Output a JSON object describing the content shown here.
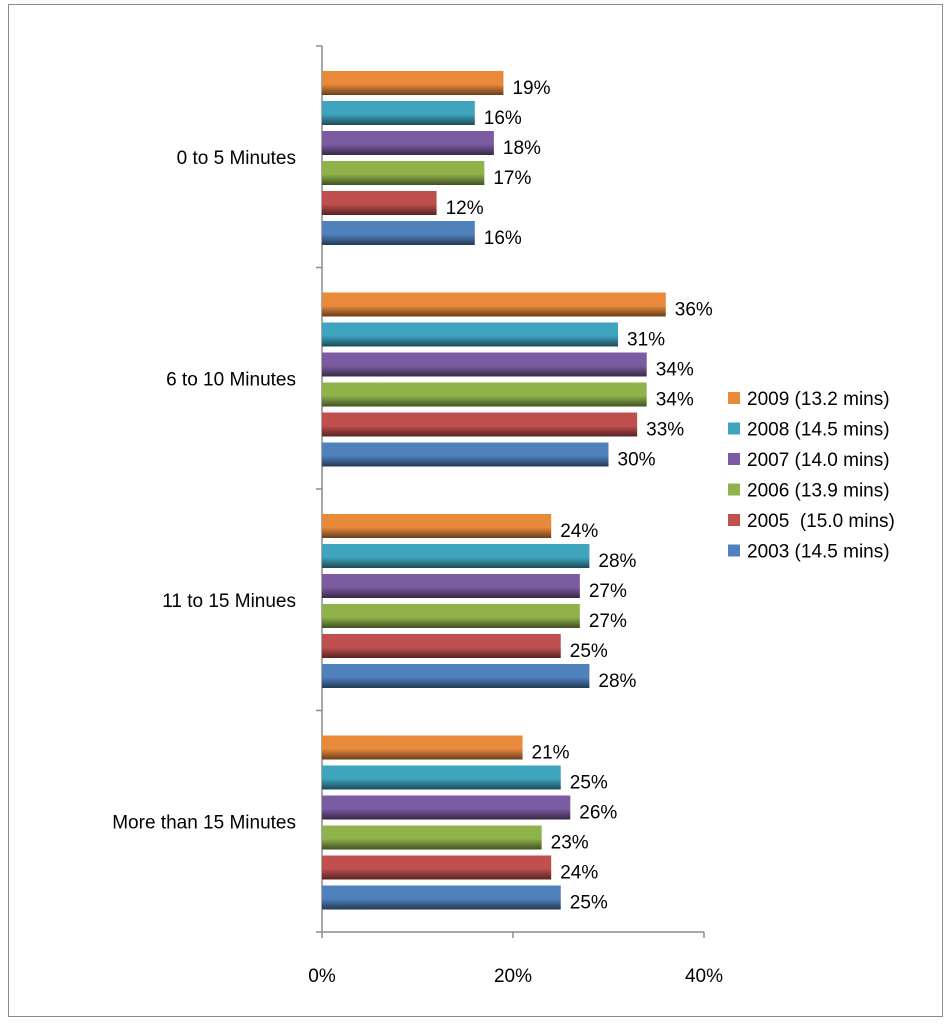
{
  "chart_data": {
    "type": "bar",
    "orientation": "horizontal",
    "categories": [
      "0 to 5 Minutes",
      "6 to 10 Minutes",
      "11 to 15 Minues",
      "More than 15 Minutes"
    ],
    "series": [
      {
        "name": "2009 (13.2 mins)",
        "color": "#E98A3B",
        "values": [
          19,
          36,
          24,
          21
        ],
        "labels": [
          "19%",
          "36%",
          "24%",
          "21%"
        ]
      },
      {
        "name": "2008 (14.5 mins)",
        "color": "#3FA4BE",
        "values": [
          16,
          31,
          28,
          25
        ],
        "labels": [
          "16%",
          "31%",
          "28%",
          "25%"
        ]
      },
      {
        "name": "2007 (14.0 mins)",
        "color": "#7B5BA1",
        "values": [
          18,
          34,
          27,
          26
        ],
        "labels": [
          "18%",
          "34%",
          "27%",
          "26%"
        ]
      },
      {
        "name": "2006 (13.9 mins)",
        "color": "#8FB24B",
        "values": [
          17,
          34,
          27,
          23
        ],
        "labels": [
          "17%",
          "34%",
          "27%",
          "23%"
        ]
      },
      {
        "name": "2005  (15.0 mins)",
        "color": "#C0504D",
        "values": [
          12,
          33,
          25,
          24
        ],
        "labels": [
          "12%",
          "33%",
          "25%",
          "24%"
        ]
      },
      {
        "name": "2003 (14.5 mins)",
        "color": "#4F81BD",
        "values": [
          16,
          30,
          28,
          25
        ],
        "labels": [
          "16%",
          "30%",
          "28%",
          "25%"
        ]
      }
    ],
    "xticks": [
      0,
      20,
      40
    ],
    "xtick_labels": [
      "0%",
      "20%",
      "40%"
    ],
    "xlim": [
      0,
      40
    ],
    "grid": false,
    "legend_position": "right"
  }
}
